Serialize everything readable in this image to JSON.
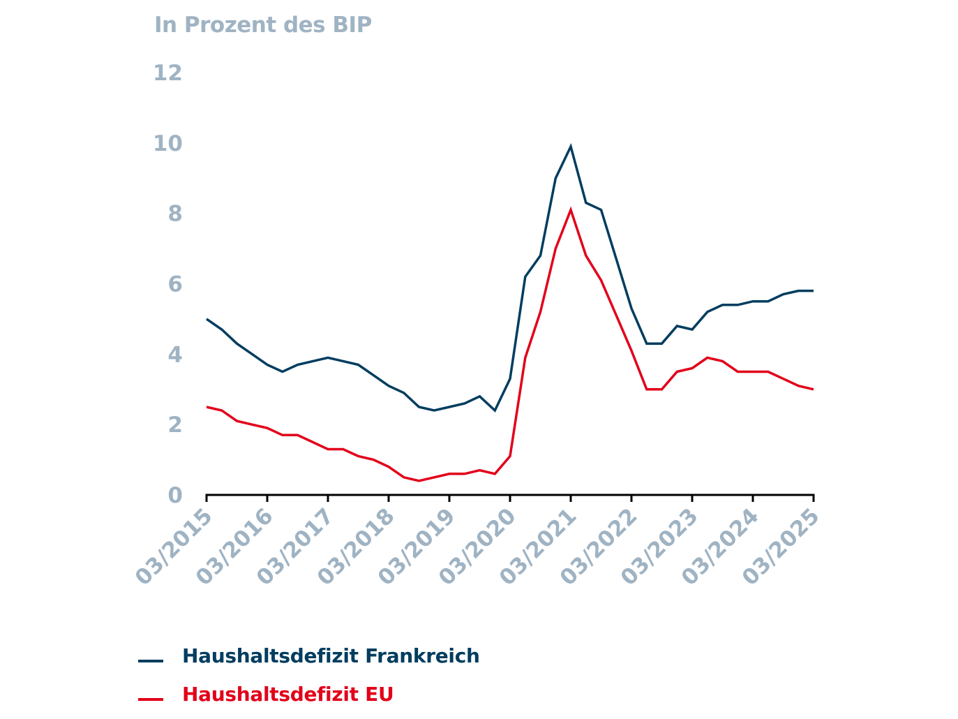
{
  "chart_data": {
    "type": "line",
    "title": "",
    "ylabel": "In Prozent des BIP",
    "xlabel": "",
    "ylim": [
      0,
      12
    ],
    "yticks": [
      "0",
      "2",
      "4",
      "6",
      "8",
      "10",
      "12"
    ],
    "xticks": [
      "03/2015",
      "03/2016",
      "03/2017",
      "03/2018",
      "03/2019",
      "03/2020",
      "03/2021",
      "03/2022",
      "03/2023",
      "03/2024",
      "03/2025"
    ],
    "grid": false,
    "legend_position": "bottom-left",
    "x_frequency": "quarterly",
    "series": [
      {
        "name": "Haushaltsdefizit Frankreich",
        "color": "#003d5f",
        "values": [
          5.0,
          4.7,
          4.3,
          4.0,
          3.7,
          3.5,
          3.7,
          3.8,
          3.9,
          3.8,
          3.7,
          3.4,
          3.1,
          2.9,
          2.5,
          2.4,
          2.5,
          2.6,
          2.8,
          2.4,
          3.3,
          6.2,
          6.8,
          9.0,
          9.9,
          8.3,
          8.1,
          6.7,
          5.3,
          4.3,
          4.3,
          4.8,
          4.7,
          5.2,
          5.4,
          5.4,
          5.5,
          5.5,
          5.7,
          5.8,
          5.8
        ]
      },
      {
        "name": "Haushaltsdefizit EU",
        "color": "#e2001a",
        "values": [
          2.5,
          2.4,
          2.1,
          2.0,
          1.9,
          1.7,
          1.7,
          1.5,
          1.3,
          1.3,
          1.1,
          1.0,
          0.8,
          0.5,
          0.4,
          0.5,
          0.6,
          0.6,
          0.7,
          0.6,
          1.1,
          3.9,
          5.2,
          7.0,
          8.1,
          6.8,
          6.1,
          5.1,
          4.1,
          3.0,
          3.0,
          3.5,
          3.6,
          3.9,
          3.8,
          3.5,
          3.5,
          3.5,
          3.3,
          3.1,
          3.0
        ]
      }
    ]
  },
  "colors": {
    "axis_text": "#9fb3c3",
    "axis_line": "#000000"
  }
}
